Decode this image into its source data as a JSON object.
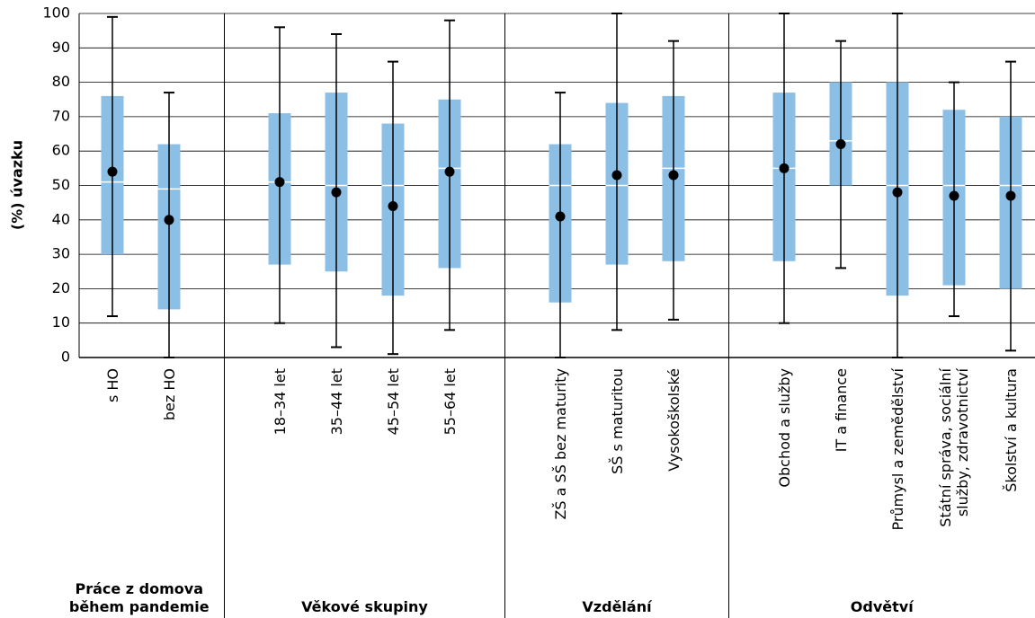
{
  "chart_data": {
    "type": "box",
    "y_label": "(%) úvazku",
    "ylim": [
      0,
      100
    ],
    "yticks": [
      0,
      10,
      20,
      30,
      40,
      50,
      60,
      70,
      80,
      90,
      100
    ],
    "grid": true,
    "box_color": "#8cbfe6",
    "median_color": "#ffffff",
    "whisker_color": "#000000",
    "mean_color": "#000000",
    "groups": [
      {
        "label": "Práce z domova během pandemie",
        "categories": [
          "s HO",
          "bez HO"
        ],
        "min": [
          12,
          0
        ],
        "q1": [
          30,
          14
        ],
        "median": [
          51,
          49
        ],
        "q3": [
          76,
          62
        ],
        "max": [
          99,
          77
        ],
        "mean": [
          54,
          40
        ]
      },
      {
        "label": "Věkové skupiny",
        "categories": [
          "18–34 let",
          "35–44 let",
          "45–54 let",
          "55–64 let"
        ],
        "min": [
          10,
          3,
          1,
          8
        ],
        "q1": [
          27,
          25,
          18,
          26
        ],
        "median": [
          51,
          50,
          50,
          55
        ],
        "q3": [
          71,
          77,
          68,
          75
        ],
        "max": [
          96,
          94,
          86,
          98
        ],
        "mean": [
          51,
          48,
          44,
          54
        ]
      },
      {
        "label": "Vzdělání",
        "categories": [
          "ZŠ a SŠ bez maturity",
          "SŠ s maturitou",
          "Vysokoškolské"
        ],
        "min": [
          0,
          8,
          11
        ],
        "q1": [
          16,
          27,
          28
        ],
        "median": [
          50,
          50,
          55
        ],
        "q3": [
          62,
          74,
          76
        ],
        "max": [
          77,
          100,
          92
        ],
        "mean": [
          41,
          53,
          53
        ]
      },
      {
        "label": "Odvětví",
        "categories": [
          "Obchod a služby",
          "IT a finance",
          "Průmysl a zemědělství",
          "Státní správa, sociální služby, zdravotnictví",
          "Školství a kultura"
        ],
        "min": [
          10,
          26,
          0,
          12,
          2
        ],
        "q1": [
          28,
          50,
          18,
          21,
          20
        ],
        "median": [
          55,
          63,
          50,
          50,
          50
        ],
        "q3": [
          77,
          80,
          80,
          72,
          70
        ],
        "max": [
          100,
          92,
          100,
          80,
          86
        ],
        "mean": [
          55,
          62,
          48,
          47,
          47
        ]
      }
    ]
  }
}
